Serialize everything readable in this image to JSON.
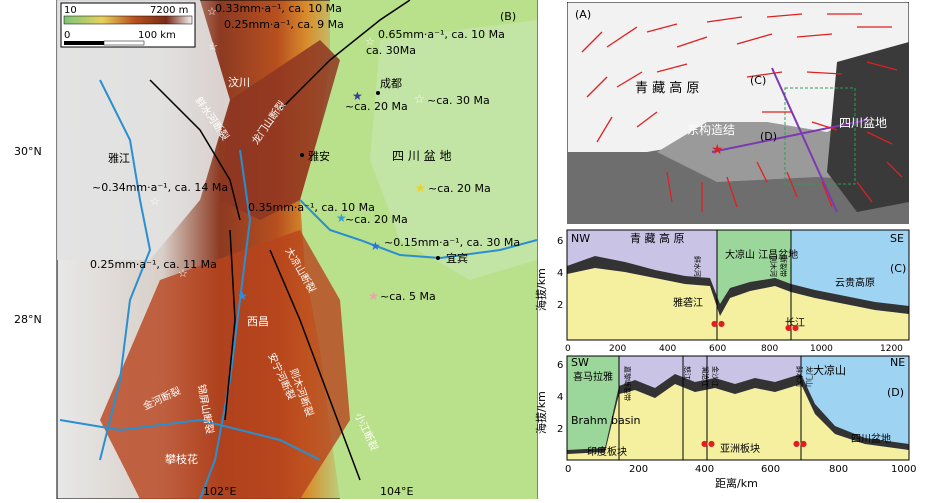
{
  "map_b": {
    "panel_label": "(B)",
    "legend": {
      "elev_min": "10",
      "elev_max": "7200 m",
      "scale_zero": "0",
      "scale_len": "100 km"
    },
    "lat_labels": [
      "30°N",
      "28°N"
    ],
    "lon_labels": [
      "102°E",
      "104°E"
    ],
    "places": [
      "成都",
      "雅安",
      "四 川 盆 地",
      "雅江",
      "宜宾",
      "西昌",
      "攀枝花",
      "汶川"
    ],
    "faults": [
      "鲜水河断裂",
      "龙门山断裂",
      "大凉山断裂",
      "安宁河断裂",
      "则木河断裂",
      "金河断裂",
      "小江断裂",
      "锦屏山断裂"
    ],
    "annotations": [
      "0.33mm·a⁻¹, ca. 10 Ma",
      "0.25mm·a⁻¹, ca. 9 Ma",
      "0.65mm·a⁻¹, ca. 10 Ma",
      "ca. 30Ma",
      "~ca. 20 Ma",
      "~ca. 30 Ma",
      "~ca. 20 Ma",
      "~0.34mm·a⁻¹, ca. 14 Ma",
      "0.35mm·a⁻¹, ca. 10 Ma",
      "~ca. 20 Ma",
      "~0.15mm·a⁻¹, ca. 30 Ma",
      "0.25mm·a⁻¹, ca. 11 Ma",
      "~ca. 5 Ma"
    ]
  },
  "map_a": {
    "panel_label": "(A)",
    "labels": [
      "青 藏 高 原",
      "四川盆地",
      "东构造结",
      "(C)",
      "(D)"
    ]
  },
  "profile_c": {
    "left_label": "NW",
    "right_label": "SE",
    "regions": [
      "青 藏 高 原",
      "大凉山\n江昌盆地",
      "云贵高原"
    ],
    "panel_label": "(C)",
    "inner_labels": [
      "雅砻江",
      "长江"
    ],
    "fault_labels": [
      "鲜水河",
      "则木河",
      "断裂带"
    ],
    "ylabel": "海拔/km",
    "yticks": [
      "6",
      "4",
      "2"
    ]
  },
  "profile_d": {
    "left_label": "SW",
    "right_label": "NE",
    "regions": [
      "喜马拉雅",
      "大凉山",
      "Brahm\nbasin",
      "印度板块",
      "亚洲板块",
      "四川盆地"
    ],
    "panel_label": "(D)",
    "fault_labels": [
      "嘉黎断裂带",
      "怒江",
      "澜沧江",
      "金沙江",
      "鲜水河",
      "龙门山"
    ],
    "ylabel": "海拔/km",
    "yticks": [
      "6",
      "4",
      "2"
    ],
    "xticks": [
      "0",
      "200",
      "400",
      "600",
      "800",
      "1000"
    ],
    "xticks_c": [
      "0",
      "200",
      "400",
      "600",
      "800",
      "1000",
      "1200"
    ],
    "xlabel": "距离/km"
  },
  "colors": {
    "plain": "#9fd68a",
    "mountain": "#a8321e",
    "high": "#d9d9d9",
    "river": "#2a8fd1",
    "purple_band": "#c9c3e6",
    "green_band": "#9bd69a",
    "blue_band": "#9fd3f2"
  }
}
